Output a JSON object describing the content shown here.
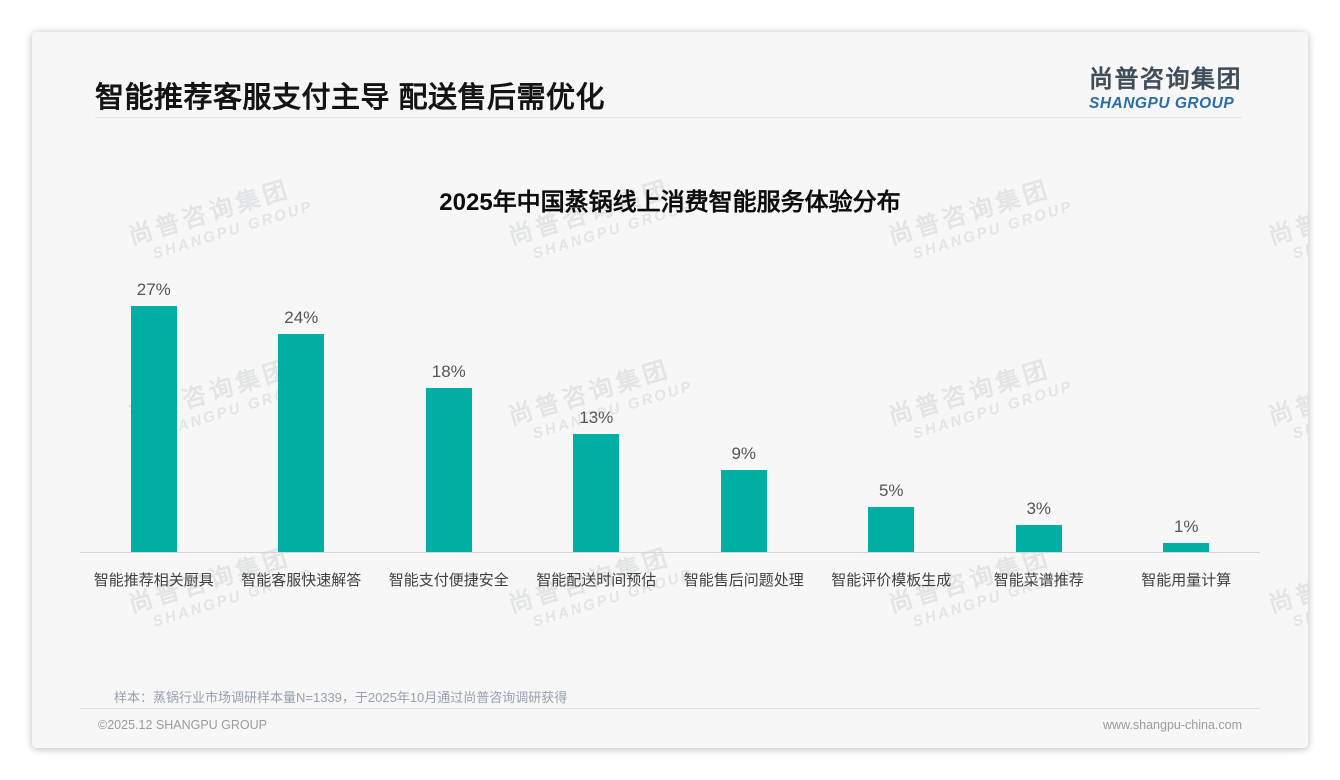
{
  "page": {
    "title": "智能推荐客服支付主导 配送售后需优化",
    "logo": {
      "cn": "尚普咨询集团",
      "en": "SHANGPU GROUP"
    },
    "watermark": {
      "line1": "尚普咨询集团",
      "line2": "SHANGPU GROUP"
    },
    "note": "样本：蒸锅行业市场调研样本量N=1339，于2025年10月通过尚普咨询调研获得",
    "footer": {
      "left": "©2025.12 SHANGPU GROUP",
      "right": "www.shangpu-china.com"
    },
    "colors": {
      "bar_teal": "#00AEA4",
      "logo_blue": "#2a6da6",
      "logo_dark": "#3f4c5a",
      "card_background": "#f7f7f7"
    }
  },
  "chart_data": {
    "type": "bar",
    "title": "2025年中国蒸锅线上消费智能服务体验分布",
    "categories": [
      "智能推荐相关厨具",
      "智能客服快速解答",
      "智能支付便捷安全",
      "智能配送时间预估",
      "智能售后问题处理",
      "智能评价模板生成",
      "智能菜谱推荐",
      "智能用量计算"
    ],
    "values": [
      27,
      24,
      18,
      13,
      9,
      5,
      3,
      1
    ],
    "value_labels": [
      "27%",
      "24%",
      "18%",
      "13%",
      "9%",
      "5%",
      "3%",
      "1%"
    ],
    "unit": "%",
    "bar_color": "#00AEA4",
    "xlabel": "",
    "ylabel": "",
    "ylim": [
      0,
      30
    ],
    "grid": false,
    "legend": false,
    "value_labels_position": "above-bars"
  }
}
